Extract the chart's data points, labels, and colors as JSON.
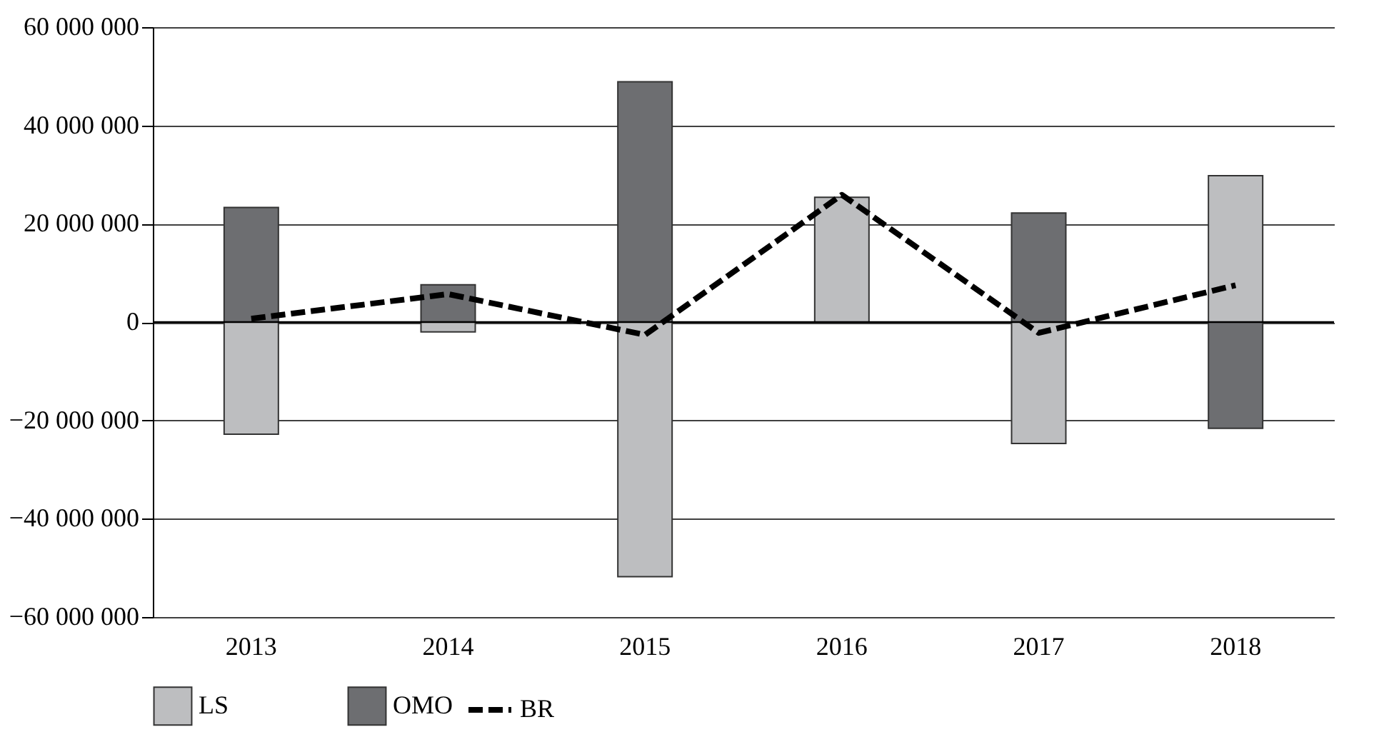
{
  "chart_data": {
    "type": "bar",
    "stacked": true,
    "categories": [
      "2013",
      "2014",
      "2015",
      "2016",
      "2017",
      "2018"
    ],
    "series": [
      {
        "name": "LS",
        "color": "#bdbec0",
        "values": [
          -22800000.0,
          -2000000.0,
          -51800000.0,
          25400000.0,
          -24700000.0,
          29800000.0
        ]
      },
      {
        "name": "OMO",
        "color": "#6d6e71",
        "values": [
          23300000.0,
          7600000.0,
          48900000.0,
          null,
          22200000.0,
          -21600000.0
        ]
      },
      {
        "name": "BR",
        "type": "line",
        "line_style": "dashed",
        "color": "#000000",
        "values": [
          700000.0,
          5700000.0,
          -2600000.0,
          25900000.0,
          -2200000.0,
          7500000.0
        ]
      }
    ],
    "ylim": [
      -60000000,
      60000000
    ],
    "yticks": [
      {
        "value": -60000000,
        "label": "−60 000 000"
      },
      {
        "value": -40000000,
        "label": "−40 000 000"
      },
      {
        "value": -20000000,
        "label": "−20 000 000"
      },
      {
        "value": 0,
        "label": "0"
      },
      {
        "value": 20000000,
        "label": "20 000 000"
      },
      {
        "value": 40000000,
        "label": "40 000 000"
      },
      {
        "value": 60000000,
        "label": "60 000 000"
      }
    ],
    "grid": "y",
    "legend": "bottom"
  }
}
